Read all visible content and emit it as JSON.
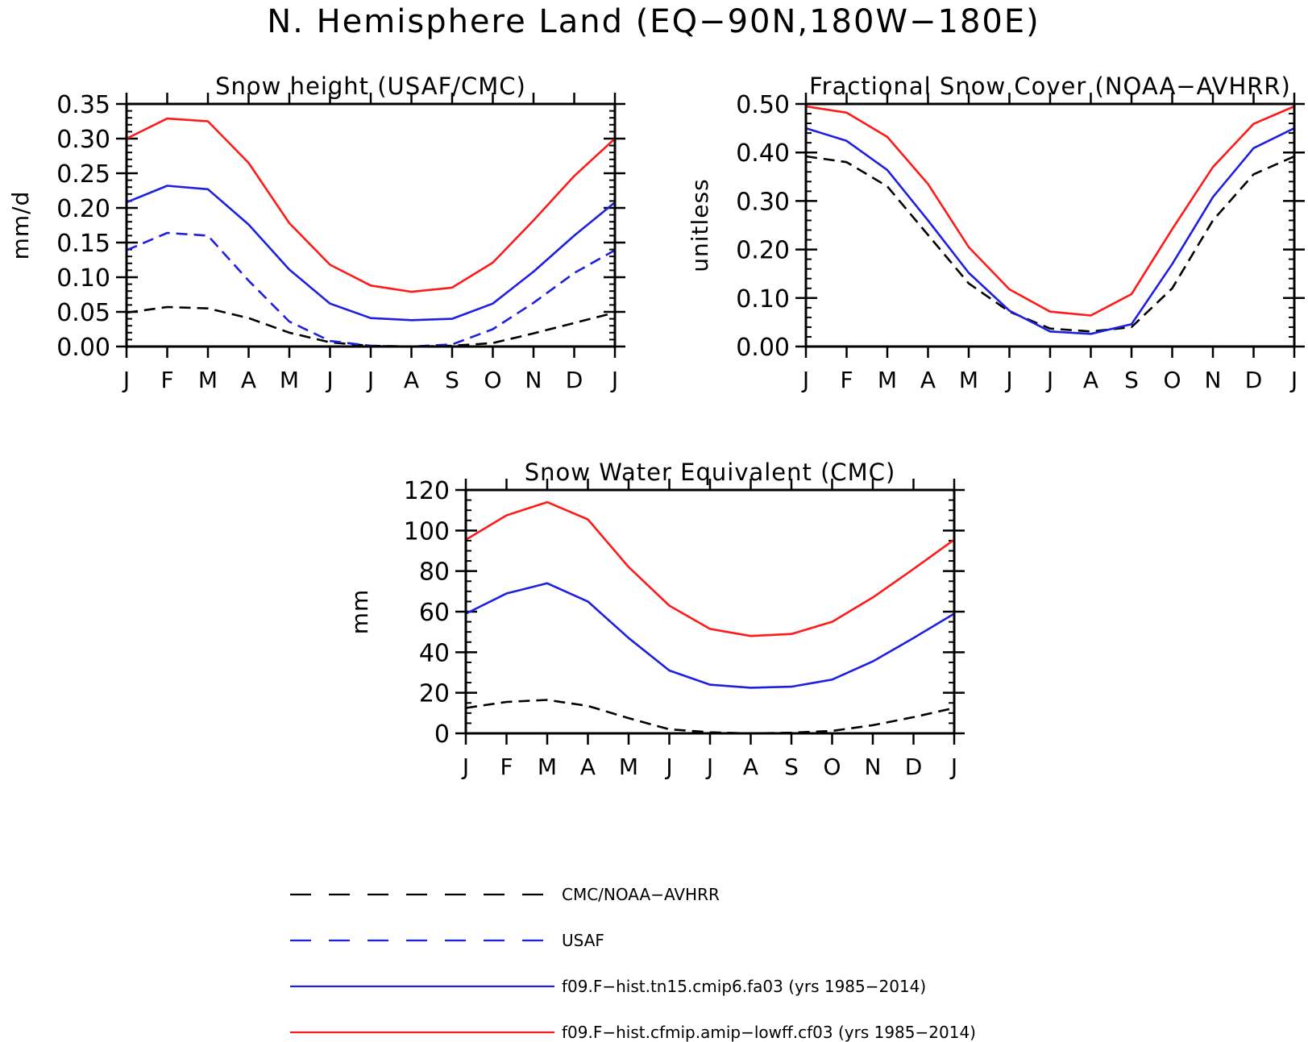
{
  "figure": {
    "title": "N. Hemisphere Land (EQ−90N,180W−180E)"
  },
  "colors": {
    "obs": "#000000",
    "usaf": "#1f1fe0",
    "tn15": "#1f1fe0",
    "lowff": "#ff1a1a"
  },
  "chart_data": [
    {
      "type": "line",
      "title": "Snow height (USAF/CMC)",
      "ylabel": "mm/d",
      "ylim": [
        0,
        0.35
      ],
      "yticks": [
        "0.00",
        "0.05",
        "0.10",
        "0.15",
        "0.20",
        "0.25",
        "0.30",
        "0.35"
      ],
      "yminor": 0.01,
      "categories": [
        "J",
        "F",
        "M",
        "A",
        "M",
        "J",
        "J",
        "A",
        "S",
        "O",
        "N",
        "D",
        "J"
      ],
      "series": [
        {
          "name": "CMC/NOAA−AVHRR",
          "values": [
            0.049,
            0.057,
            0.055,
            0.041,
            0.02,
            0.006,
            0.001,
            0.0,
            0.001,
            0.005,
            0.019,
            0.034,
            0.049
          ]
        },
        {
          "name": "USAF",
          "values": [
            0.139,
            0.164,
            0.16,
            0.095,
            0.036,
            0.008,
            0.001,
            0.0,
            0.003,
            0.025,
            0.063,
            0.106,
            0.139
          ]
        },
        {
          "name": "f09.F−hist.tn15.cmip6.fa03 (yrs 1985−2014)",
          "values": [
            0.208,
            0.232,
            0.227,
            0.176,
            0.111,
            0.062,
            0.041,
            0.038,
            0.04,
            0.062,
            0.108,
            0.16,
            0.208
          ]
        },
        {
          "name": "f09.F−hist.cfmip.amip−lowff.cf03 (yrs 1985−2014)",
          "values": [
            0.3,
            0.329,
            0.325,
            0.265,
            0.178,
            0.118,
            0.088,
            0.079,
            0.085,
            0.121,
            0.182,
            0.246,
            0.3
          ]
        }
      ]
    },
    {
      "type": "line",
      "title": "Fractional Snow Cover (NOAA−AVHRR)",
      "ylabel": "unitless",
      "ylim": [
        0,
        0.5
      ],
      "yticks": [
        "0.00",
        "0.10",
        "0.20",
        "0.30",
        "0.40",
        "0.50"
      ],
      "yminor": 0.02,
      "categories": [
        "J",
        "F",
        "M",
        "A",
        "M",
        "J",
        "J",
        "A",
        "S",
        "O",
        "N",
        "D",
        "J"
      ],
      "series": [
        {
          "name": "CMC/NOAA−AVHRR",
          "values": [
            0.392,
            0.38,
            0.33,
            0.23,
            0.13,
            0.072,
            0.037,
            0.031,
            0.04,
            0.12,
            0.26,
            0.355,
            0.392
          ]
        },
        {
          "name": "f09.F−hist.tn15.cmip6.fa03 (yrs 1985−2014)",
          "values": [
            0.45,
            0.424,
            0.364,
            0.26,
            0.152,
            0.074,
            0.031,
            0.026,
            0.046,
            0.17,
            0.308,
            0.409,
            0.45
          ]
        },
        {
          "name": "f09.F−hist.cfmip.amip−lowff.cf03 (yrs 1985−2014)",
          "values": [
            0.495,
            0.482,
            0.432,
            0.335,
            0.205,
            0.118,
            0.072,
            0.064,
            0.108,
            0.242,
            0.37,
            0.459,
            0.495
          ]
        }
      ]
    },
    {
      "type": "line",
      "title": "Snow Water Equivalent (CMC)",
      "ylabel": "mm",
      "ylim": [
        0,
        120
      ],
      "yticks": [
        "0",
        "20",
        "40",
        "60",
        "80",
        "100",
        "120"
      ],
      "yminor": 5,
      "categories": [
        "J",
        "F",
        "M",
        "A",
        "M",
        "J",
        "J",
        "A",
        "S",
        "O",
        "N",
        "D",
        "J"
      ],
      "series": [
        {
          "name": "CMC/NOAA−AVHRR",
          "values": [
            12.5,
            15.5,
            16.5,
            13.5,
            7.5,
            2.0,
            0.5,
            0.0,
            0.3,
            1.2,
            4.0,
            8.0,
            12.5
          ]
        },
        {
          "name": "f09.F−hist.tn15.cmip6.fa03 (yrs 1985−2014)",
          "values": [
            59,
            69,
            74,
            65,
            47,
            31,
            24,
            22.5,
            23,
            26.5,
            35.5,
            47,
            59
          ]
        },
        {
          "name": "f09.F−hist.cfmip.amip−lowff.cf03 (yrs 1985−2014)",
          "values": [
            95.5,
            107.5,
            114,
            105.5,
            82,
            63,
            51.5,
            48,
            49,
            55,
            67,
            81,
            95.5
          ]
        }
      ]
    }
  ],
  "legend": {
    "placement": "bottom",
    "entries": [
      {
        "label": "CMC/NOAA−AVHRR",
        "color": "#000000",
        "dash": true
      },
      {
        "label": "USAF",
        "color": "#1f1fe0",
        "dash": true
      },
      {
        "label": "f09.F−hist.tn15.cmip6.fa03 (yrs 1985−2014)",
        "color": "#1f1fe0",
        "dash": false
      },
      {
        "label": "f09.F−hist.cfmip.amip−lowff.cf03 (yrs 1985−2014)",
        "color": "#ff1a1a",
        "dash": false
      }
    ]
  }
}
